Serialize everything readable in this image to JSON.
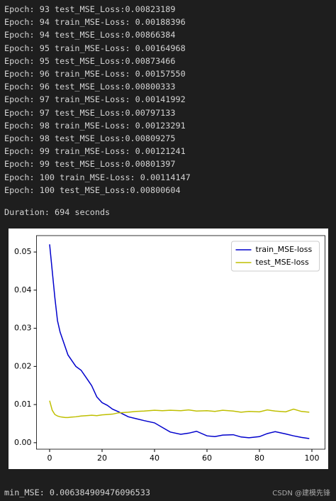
{
  "console": {
    "lines": [
      "Epoch: 93 test_MSE_Loss:0.00823189",
      "Epoch: 94 train_MSE-Loss: 0.00188396",
      "Epoch: 94 test_MSE_Loss:0.00866384",
      "Epoch: 95 train_MSE-Loss: 0.00164968",
      "Epoch: 95 test_MSE_Loss:0.00873466",
      "Epoch: 96 train_MSE-Loss: 0.00157550",
      "Epoch: 96 test_MSE_Loss:0.00800333",
      "Epoch: 97 train_MSE-Loss: 0.00141992",
      "Epoch: 97 test_MSE_Loss:0.00797133",
      "Epoch: 98 train_MSE-Loss: 0.00123291",
      "Epoch: 98 test_MSE_Loss:0.00809275",
      "Epoch: 99 train_MSE-Loss: 0.00121241",
      "Epoch: 99 test_MSE_Loss:0.00801397",
      "Epoch: 100 train_MSE-Loss: 0.00114147",
      "Epoch: 100 test_MSE_Loss:0.00800604"
    ],
    "duration": "Duration: 694 seconds",
    "min_mse": "min_MSE: 0.006384909476096533",
    "watermark": "CSDN @建模先锋"
  },
  "chart_data": {
    "type": "line",
    "x": [
      0,
      1,
      2,
      3,
      4,
      5,
      6,
      7,
      8,
      10,
      12,
      14,
      16,
      18,
      20,
      22,
      24,
      26,
      28,
      30,
      33,
      36,
      40,
      43,
      46,
      50,
      53,
      56,
      60,
      63,
      66,
      70,
      73,
      76,
      80,
      83,
      86,
      90,
      93,
      96,
      99
    ],
    "series": [
      {
        "name": "train_MSE-loss",
        "color": "#0000cc",
        "values": [
          0.052,
          0.045,
          0.038,
          0.032,
          0.029,
          0.027,
          0.025,
          0.023,
          0.022,
          0.02,
          0.019,
          0.017,
          0.015,
          0.012,
          0.0105,
          0.0098,
          0.0088,
          0.0082,
          0.0075,
          0.0068,
          0.0063,
          0.0058,
          0.0052,
          0.004,
          0.0028,
          0.0022,
          0.0025,
          0.003,
          0.0018,
          0.0016,
          0.002,
          0.0021,
          0.0015,
          0.0013,
          0.0016,
          0.0024,
          0.0029,
          0.0023,
          0.0018,
          0.0014,
          0.0011
        ]
      },
      {
        "name": "test_MSE-loss",
        "color": "#bfbf00",
        "values": [
          0.011,
          0.0085,
          0.0074,
          0.007,
          0.0068,
          0.0067,
          0.0066,
          0.0066,
          0.0067,
          0.0068,
          0.007,
          0.0071,
          0.0072,
          0.0071,
          0.0073,
          0.0074,
          0.0075,
          0.0078,
          0.0079,
          0.008,
          0.0082,
          0.0083,
          0.0085,
          0.0084,
          0.0085,
          0.0084,
          0.0086,
          0.0083,
          0.0084,
          0.0082,
          0.0085,
          0.0083,
          0.008,
          0.0082,
          0.0081,
          0.0086,
          0.0083,
          0.0081,
          0.0088,
          0.0082,
          0.008
        ]
      }
    ],
    "xlim": [
      -5,
      105
    ],
    "ylim": [
      -0.0017,
      0.0543
    ],
    "xticks": [
      0,
      20,
      40,
      60,
      80,
      100
    ],
    "yticks": [
      {
        "value": 0,
        "label": "0.00"
      },
      0.01,
      0.02,
      0.03,
      0.04,
      0.05
    ],
    "legend": "upper right",
    "grid": false
  }
}
